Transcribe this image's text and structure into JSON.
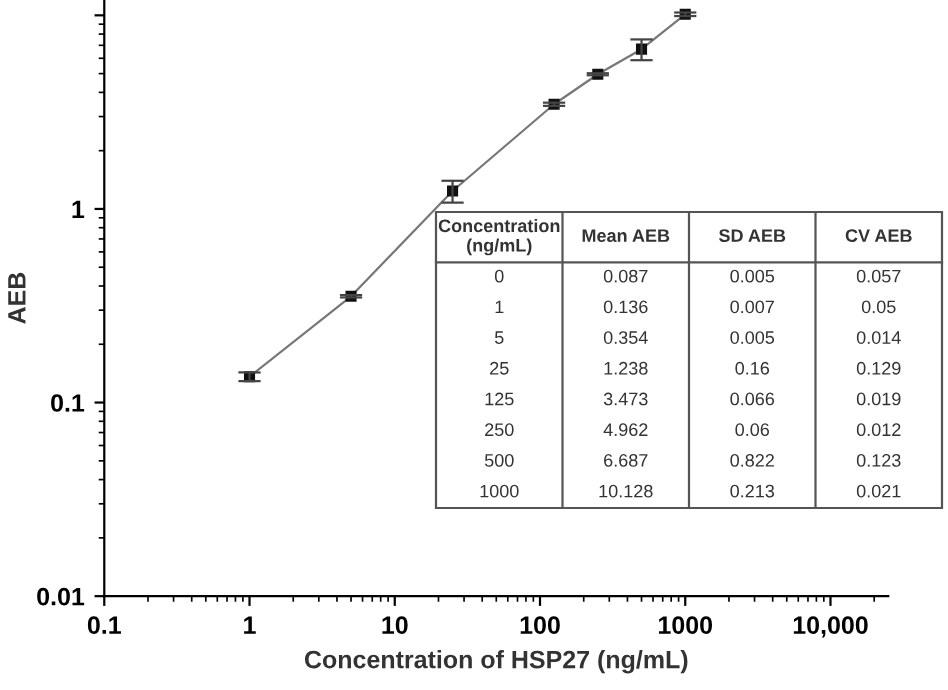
{
  "chart_data": {
    "type": "line",
    "xlabel": "Concentration of HSP27 (ng/mL)",
    "ylabel": "AEB",
    "x": [
      1,
      5,
      25,
      125,
      250,
      500,
      1000
    ],
    "series": [
      {
        "color": "#111111",
        "values": [
          0.136,
          0.354,
          1.238,
          3.473,
          4.962,
          6.687,
          10.128
        ],
        "errors": [
          0.007,
          0.005,
          0.16,
          0.066,
          0.06,
          0.822,
          0.213
        ]
      }
    ],
    "log": "xy",
    "marker": "square",
    "line_style": "solid",
    "grid": false,
    "legend": false,
    "xlim": [
      0.1,
      25000
    ],
    "ylim": [
      0.01,
      12
    ],
    "xticks": [
      0.1,
      1,
      10,
      100,
      1000,
      {
        "value": 10000,
        "label": "10,000"
      }
    ],
    "yticks": [
      0.01,
      0.1,
      1,
      {
        "value": 10,
        "label": null
      }
    ],
    "annotations": [
      "Concentration\n(ng/mL)",
      "Mean AEB",
      "SD AEB",
      "CV AEB",
      "0",
      "0.087",
      "0.005",
      "0.057",
      "1",
      "0.136",
      "0.007",
      "0.05",
      "5",
      "0.354",
      "0.005",
      "0.014",
      "25",
      "1.238",
      "0.16",
      "0.129",
      "125",
      "3.473",
      "0.066",
      "0.019",
      "250",
      "4.962",
      "0.06",
      "0.012",
      "500",
      "6.687",
      "0.822",
      "0.123",
      "1000",
      "10.128",
      "0.213",
      "0.021"
    ]
  }
}
